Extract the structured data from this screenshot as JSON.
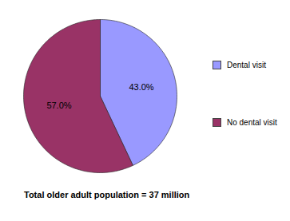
{
  "chart_data": {
    "type": "pie",
    "categories": [
      "Dental visit",
      "No dental visit"
    ],
    "values": [
      43,
      57
    ],
    "value_labels": [
      "43.0%",
      "57.0%"
    ],
    "colors": [
      "#9999ff",
      "#993366"
    ],
    "data_labels": true,
    "legend": "right",
    "caption": "Total older adult population = 37 million"
  }
}
